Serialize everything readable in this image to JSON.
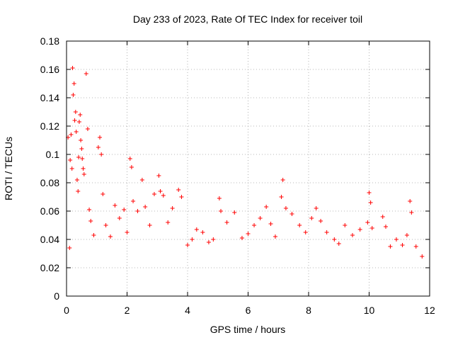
{
  "chart_data": {
    "type": "scatter",
    "title": "Day 233 of 2023, Rate Of TEC Index for receiver toil",
    "xlabel": "GPS time / hours",
    "ylabel": "ROTI / TECUs",
    "xlim": [
      0,
      12
    ],
    "ylim": [
      0,
      0.18
    ],
    "x_ticks": [
      0,
      2,
      4,
      6,
      8,
      10,
      12
    ],
    "x_tick_labels": [
      "0",
      "2",
      "4",
      "6",
      "8",
      "10",
      "12"
    ],
    "y_ticks": [
      0,
      0.02,
      0.04,
      0.06,
      0.08,
      0.1,
      0.12,
      0.14,
      0.16,
      0.18
    ],
    "y_tick_labels": [
      "0",
      "0.02",
      "0.04",
      "0.06",
      "0.08",
      "0.1",
      "0.12",
      "0.14",
      "0.16",
      "0.18"
    ],
    "grid": true,
    "marker": "+",
    "color": "#ff0000",
    "series": [
      {
        "name": "ROTI",
        "points": [
          [
            0.05,
            0.112
          ],
          [
            0.1,
            0.034
          ],
          [
            0.12,
            0.096
          ],
          [
            0.15,
            0.114
          ],
          [
            0.18,
            0.09
          ],
          [
            0.2,
            0.161
          ],
          [
            0.22,
            0.142
          ],
          [
            0.25,
            0.15
          ],
          [
            0.27,
            0.124
          ],
          [
            0.3,
            0.13
          ],
          [
            0.32,
            0.116
          ],
          [
            0.35,
            0.082
          ],
          [
            0.38,
            0.074
          ],
          [
            0.4,
            0.098
          ],
          [
            0.42,
            0.123
          ],
          [
            0.45,
            0.128
          ],
          [
            0.47,
            0.11
          ],
          [
            0.5,
            0.104
          ],
          [
            0.52,
            0.097
          ],
          [
            0.55,
            0.09
          ],
          [
            0.58,
            0.086
          ],
          [
            0.65,
            0.157
          ],
          [
            0.7,
            0.118
          ],
          [
            0.75,
            0.061
          ],
          [
            0.8,
            0.053
          ],
          [
            0.9,
            0.043
          ],
          [
            1.05,
            0.105
          ],
          [
            1.1,
            0.112
          ],
          [
            1.15,
            0.1
          ],
          [
            1.2,
            0.072
          ],
          [
            1.3,
            0.05
          ],
          [
            1.45,
            0.042
          ],
          [
            1.6,
            0.064
          ],
          [
            1.75,
            0.055
          ],
          [
            1.9,
            0.061
          ],
          [
            2.0,
            0.045
          ],
          [
            2.1,
            0.097
          ],
          [
            2.15,
            0.091
          ],
          [
            2.2,
            0.067
          ],
          [
            2.35,
            0.06
          ],
          [
            2.5,
            0.082
          ],
          [
            2.6,
            0.063
          ],
          [
            2.75,
            0.05
          ],
          [
            2.9,
            0.072
          ],
          [
            3.05,
            0.085
          ],
          [
            3.1,
            0.074
          ],
          [
            3.2,
            0.071
          ],
          [
            3.35,
            0.052
          ],
          [
            3.5,
            0.062
          ],
          [
            3.7,
            0.075
          ],
          [
            3.8,
            0.07
          ],
          [
            4.0,
            0.036
          ],
          [
            4.15,
            0.04
          ],
          [
            4.3,
            0.047
          ],
          [
            4.5,
            0.045
          ],
          [
            4.7,
            0.038
          ],
          [
            4.85,
            0.04
          ],
          [
            5.05,
            0.069
          ],
          [
            5.1,
            0.06
          ],
          [
            5.3,
            0.052
          ],
          [
            5.55,
            0.059
          ],
          [
            5.8,
            0.041
          ],
          [
            6.0,
            0.044
          ],
          [
            6.2,
            0.05
          ],
          [
            6.4,
            0.055
          ],
          [
            6.6,
            0.063
          ],
          [
            6.75,
            0.051
          ],
          [
            6.9,
            0.042
          ],
          [
            7.1,
            0.07
          ],
          [
            7.15,
            0.082
          ],
          [
            7.25,
            0.062
          ],
          [
            7.45,
            0.058
          ],
          [
            7.7,
            0.05
          ],
          [
            7.9,
            0.045
          ],
          [
            8.1,
            0.055
          ],
          [
            8.25,
            0.062
          ],
          [
            8.4,
            0.053
          ],
          [
            8.6,
            0.045
          ],
          [
            8.85,
            0.04
          ],
          [
            9.0,
            0.037
          ],
          [
            9.2,
            0.05
          ],
          [
            9.45,
            0.043
          ],
          [
            9.7,
            0.047
          ],
          [
            9.95,
            0.052
          ],
          [
            10.0,
            0.073
          ],
          [
            10.05,
            0.066
          ],
          [
            10.1,
            0.048
          ],
          [
            10.45,
            0.056
          ],
          [
            10.55,
            0.049
          ],
          [
            10.7,
            0.035
          ],
          [
            10.9,
            0.04
          ],
          [
            11.1,
            0.036
          ],
          [
            11.25,
            0.043
          ],
          [
            11.35,
            0.067
          ],
          [
            11.4,
            0.059
          ],
          [
            11.55,
            0.035
          ],
          [
            11.75,
            0.028
          ]
        ]
      }
    ]
  }
}
